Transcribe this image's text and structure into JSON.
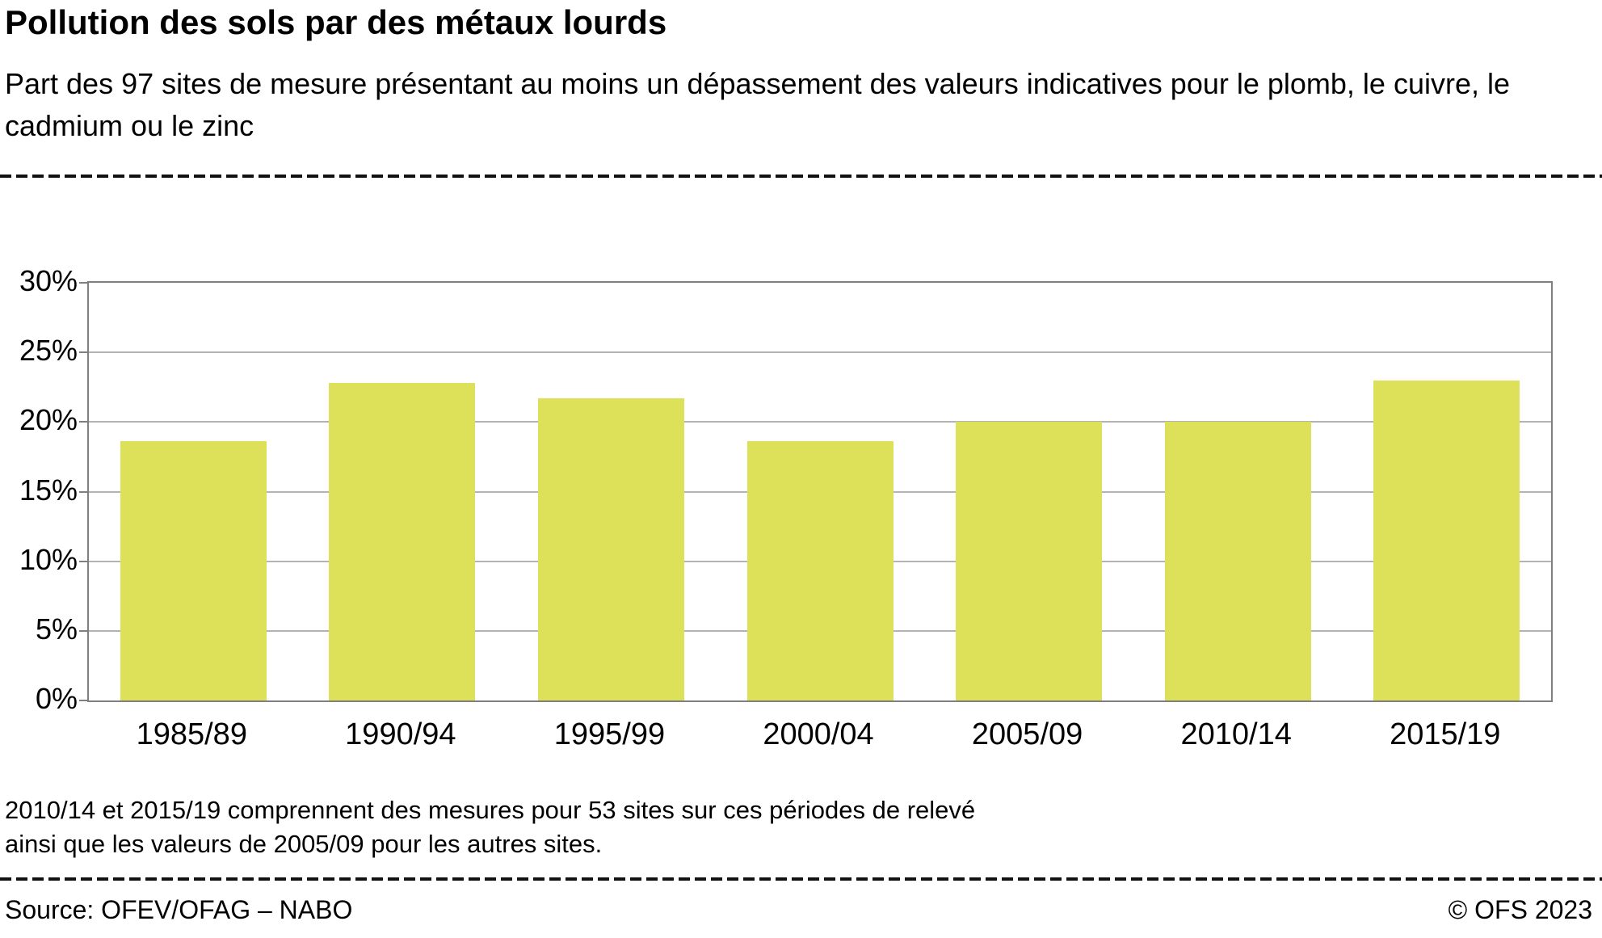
{
  "header": {
    "title": "Pollution des sols par des métaux lourds",
    "subtitle": "Part des 97 sites de mesure présentant au moins un dépassement des valeurs indicatives pour le plomb, le cuivre, le cadmium ou le zinc"
  },
  "chart_data": {
    "type": "bar",
    "categories": [
      "1985/89",
      "1990/94",
      "1995/99",
      "2000/04",
      "2005/09",
      "2010/14",
      "2015/19"
    ],
    "values": [
      18.6,
      22.8,
      21.7,
      18.6,
      20.0,
      20.0,
      23.0
    ],
    "title": "Pollution des sols par des métaux lourds",
    "xlabel": "",
    "ylabel": "",
    "ylim": [
      0,
      30
    ],
    "ytick_step": 5,
    "ytick_labels": [
      "0%",
      "5%",
      "10%",
      "15%",
      "20%",
      "25%",
      "30%"
    ],
    "grid": true,
    "legend": "none",
    "bar_color": "#dce159",
    "grid_color": "#b3b3b3",
    "axis_color": "#7f7f7f"
  },
  "footnote": {
    "line1": "2010/14 et 2015/19 comprennent des mesures pour 53 sites sur ces périodes de relevé",
    "line2": "ainsi que les valeurs de 2005/09 pour les autres sites."
  },
  "footer": {
    "source": "Source: OFEV/OFAG – NABO",
    "copyright": "© OFS 2023"
  }
}
